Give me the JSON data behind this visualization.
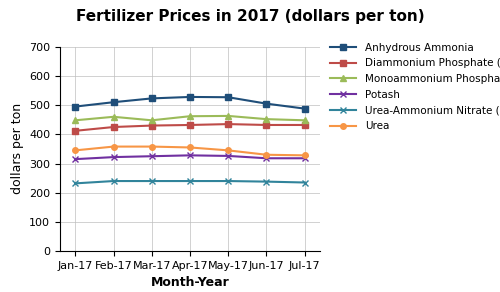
{
  "title": "Fertilizer Prices in 2017 (dollars per ton)",
  "xlabel": "Month-Year",
  "ylabel": "dollars per ton",
  "x_labels": [
    "Jan-17",
    "Feb-17",
    "Mar-17",
    "Apr-17",
    "May-17",
    "Jun-17",
    "Jul-17"
  ],
  "ylim": [
    0,
    700
  ],
  "yticks": [
    0,
    100,
    200,
    300,
    400,
    500,
    600,
    700
  ],
  "series": [
    {
      "name": "Anhydrous Ammonia",
      "color": "#1F4E79",
      "marker": "s",
      "values": [
        495,
        510,
        523,
        528,
        527,
        505,
        488
      ]
    },
    {
      "name": "Diammonium Phosphate (DAP)",
      "color": "#BE4B48",
      "marker": "s",
      "values": [
        412,
        425,
        430,
        432,
        435,
        432,
        432
      ]
    },
    {
      "name": "Monoammonium Phosphate (MAP)",
      "color": "#9BBB59",
      "marker": "^",
      "values": [
        448,
        460,
        448,
        462,
        463,
        452,
        448
      ]
    },
    {
      "name": "Potash",
      "color": "#7030A0",
      "marker": "x",
      "values": [
        315,
        322,
        325,
        328,
        326,
        318,
        318
      ]
    },
    {
      "name": "Urea-Ammonium Nitrate (UAN)",
      "color": "#31849B",
      "marker": "x",
      "values": [
        232,
        240,
        240,
        240,
        240,
        238,
        235
      ]
    },
    {
      "name": "Urea",
      "color": "#F79646",
      "marker": "o",
      "values": [
        345,
        358,
        358,
        355,
        345,
        330,
        328
      ]
    }
  ],
  "background_color": "#FFFFFF",
  "grid_color": "#BFBFBF",
  "title_fontsize": 11,
  "label_fontsize": 9,
  "tick_fontsize": 8,
  "legend_fontsize": 7.5
}
